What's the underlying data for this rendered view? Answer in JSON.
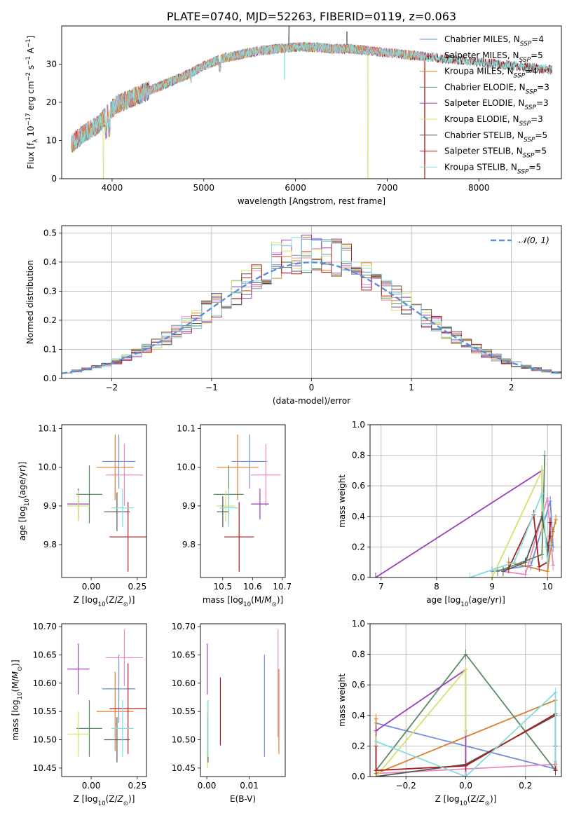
{
  "figure_title": "PLATE=0740, MJD=52263, FIBERID=0119, z=0.063",
  "colors": {
    "Chabrier MILES": "#6f8fdf",
    "Salpeter MILES": "#e98ac0",
    "Kroupa MILES": "#dc7f2c",
    "Chabrier ELODIE": "#5b8a62",
    "Salpeter ELODIE": "#9a3fb8",
    "Kroupa ELODIE": "#d2e36c",
    "Chabrier STELIB": "#555555",
    "Salpeter STELIB": "#ad1e1e",
    "Kroupa STELIB": "#86dcdc",
    "gaussian": "#5b8fd6"
  },
  "chart_data": [
    {
      "id": "spectrum",
      "type": "line",
      "title": "PLATE=0740, MJD=52263, FIBERID=0119, z=0.063",
      "xlabel": "wavelength [Angstrom, rest frame]",
      "ylabel": "Flux [f_λ 10^-17 erg cm^-2 s^-1 A^-1]",
      "xlim": [
        3450,
        8900
      ],
      "ylim": [
        0,
        40
      ],
      "xticks": [
        4000,
        5000,
        6000,
        7000,
        8000
      ],
      "yticks": [
        0,
        10,
        20,
        30
      ],
      "grid": false,
      "legend_position": "top-right",
      "legend": [
        {
          "model": "Chabrier MILES",
          "label": "Chabrier MILES, N",
          "sub": "SSP",
          "suffix": "=4"
        },
        {
          "model": "Salpeter MILES",
          "label": "Salpeter MILES, N",
          "sub": "SSP",
          "suffix": "=5"
        },
        {
          "model": "Kroupa MILES",
          "label": "Kroupa MILES, N",
          "sub": "SSP",
          "suffix": "=4"
        },
        {
          "model": "Chabrier ELODIE",
          "label": "Chabrier ELODIE, N",
          "sub": "SSP",
          "suffix": "=3"
        },
        {
          "model": "Salpeter ELODIE",
          "label": "Salpeter ELODIE, N",
          "sub": "SSP",
          "suffix": "=3"
        },
        {
          "model": "Kroupa ELODIE",
          "label": "Kroupa ELODIE, N",
          "sub": "SSP",
          "suffix": "=3"
        },
        {
          "model": "Chabrier STELIB",
          "label": "Chabrier STELIB, N",
          "sub": "SSP",
          "suffix": "=5"
        },
        {
          "model": "Salpeter STELIB",
          "label": "Salpeter STELIB, N",
          "sub": "SSP",
          "suffix": "=5"
        },
        {
          "model": "Kroupa STELIB",
          "label": "Kroupa STELIB, N",
          "sub": "SSP",
          "suffix": "=5"
        }
      ],
      "continuum": {
        "x": [
          3550,
          3700,
          3850,
          3950,
          4050,
          4200,
          4350,
          4500,
          4650,
          4800,
          5000,
          5200,
          5400,
          5600,
          5800,
          6000,
          6200,
          6400,
          6600,
          6800,
          7000,
          7200,
          7400,
          7600,
          7800,
          8000,
          8200,
          8400,
          8600,
          8800
        ],
        "y": [
          9,
          12,
          14,
          17,
          19.5,
          21,
          22.5,
          24,
          25.5,
          27,
          29.5,
          31.5,
          32.5,
          33.5,
          34,
          34.5,
          34.5,
          34,
          34,
          33.5,
          33,
          32.5,
          32,
          31.5,
          31,
          30.5,
          30,
          29.5,
          29,
          28.5
        ]
      },
      "features": {
        "dips": [
          {
            "model": "Kroupa ELODIE",
            "x": 3905,
            "y": 0
          },
          {
            "model": "Kroupa ELODIE",
            "x": 6790,
            "y": 0
          },
          {
            "model": "Salpeter STELIB",
            "x": 7410,
            "y": 0
          },
          {
            "model": "Kroupa STELIB",
            "x": 5880,
            "y": 26
          }
        ],
        "peaks": [
          {
            "model": "Chabrier STELIB",
            "x": 5930,
            "y": 40
          },
          {
            "model": "Chabrier STELIB",
            "x": 6560,
            "y": 38.5
          }
        ]
      }
    },
    {
      "id": "residuals",
      "type": "histogram",
      "xlabel": "(data-model)/error",
      "ylabel": "Normed distribution",
      "xlim": [
        -2.5,
        2.5
      ],
      "ylim": [
        0,
        0.525
      ],
      "xticks": [
        -2,
        -1,
        0,
        1,
        2
      ],
      "yticks": [
        0.0,
        0.1,
        0.2,
        0.3,
        0.4,
        0.5
      ],
      "grid": true,
      "legend_position": "top-right",
      "legend": [
        {
          "label": "𝒩(0, 1)",
          "style": "dashed"
        }
      ],
      "bin_width": 0.1,
      "reference": "gaussian"
    },
    {
      "id": "age-vs-Z",
      "type": "errorbar",
      "xlabel": "Z [log10(Z/Z☉)]",
      "ylabel": "age  [log10(age/yr)]",
      "xlim": [
        -0.16,
        0.3
      ],
      "ylim": [
        9.715,
        10.11
      ],
      "xticks": [
        0.0,
        0.25
      ],
      "yticks": [
        9.8,
        9.9,
        10.0,
        10.1
      ],
      "grid": false,
      "points": [
        {
          "model": "Chabrier MILES",
          "x": 0.15,
          "y": 10.015,
          "xerr": 0.09,
          "yerr": 0.07
        },
        {
          "model": "Salpeter MILES",
          "x": 0.18,
          "y": 9.98,
          "xerr": 0.1,
          "yerr": 0.08
        },
        {
          "model": "Kroupa MILES",
          "x": 0.13,
          "y": 10.0,
          "xerr": 0.1,
          "yerr": 0.085
        },
        {
          "model": "Chabrier ELODIE",
          "x": -0.01,
          "y": 9.93,
          "xerr": 0.07,
          "yerr": 0.075
        },
        {
          "model": "Salpeter ELODIE",
          "x": -0.07,
          "y": 9.905,
          "xerr": 0.06,
          "yerr": 0.04
        },
        {
          "model": "Kroupa ELODIE",
          "x": -0.07,
          "y": 9.9,
          "xerr": 0.06,
          "yerr": 0.04
        },
        {
          "model": "Chabrier STELIB",
          "x": 0.14,
          "y": 9.885,
          "xerr": 0.07,
          "yerr": 0.05
        },
        {
          "model": "Salpeter STELIB",
          "x": 0.2,
          "y": 9.82,
          "xerr": 0.1,
          "yerr": 0.09
        },
        {
          "model": "Kroupa STELIB",
          "x": 0.17,
          "y": 9.895,
          "xerr": 0.06,
          "yerr": 0.05
        }
      ]
    },
    {
      "id": "age-vs-mass",
      "type": "errorbar",
      "xlabel": "mass [log10(M/M☉)]",
      "ylabel": "",
      "xlim": [
        10.425,
        10.71
      ],
      "ylim": [
        9.715,
        10.11
      ],
      "xticks": [
        10.5,
        10.6,
        10.7
      ],
      "yticks": [
        9.8,
        9.9,
        10.0,
        10.1
      ],
      "grid": false,
      "points": [
        {
          "model": "Chabrier MILES",
          "x": 10.59,
          "y": 10.015,
          "xerr": 0.06,
          "yerr": 0.07
        },
        {
          "model": "Salpeter MILES",
          "x": 10.645,
          "y": 9.98,
          "xerr": 0.05,
          "yerr": 0.08
        },
        {
          "model": "Kroupa MILES",
          "x": 10.55,
          "y": 10.0,
          "xerr": 0.07,
          "yerr": 0.085
        },
        {
          "model": "Chabrier ELODIE",
          "x": 10.52,
          "y": 9.93,
          "xerr": 0.05,
          "yerr": 0.075
        },
        {
          "model": "Salpeter ELODIE",
          "x": 10.625,
          "y": 9.905,
          "xerr": 0.03,
          "yerr": 0.04
        },
        {
          "model": "Kroupa ELODIE",
          "x": 10.51,
          "y": 9.9,
          "xerr": 0.03,
          "yerr": 0.04
        },
        {
          "model": "Chabrier STELIB",
          "x": 10.5,
          "y": 9.885,
          "xerr": 0.02,
          "yerr": 0.04
        },
        {
          "model": "Salpeter STELIB",
          "x": 10.555,
          "y": 9.82,
          "xerr": 0.05,
          "yerr": 0.09
        },
        {
          "model": "Kroupa STELIB",
          "x": 10.52,
          "y": 9.895,
          "xerr": 0.03,
          "yerr": 0.05
        }
      ]
    },
    {
      "id": "weight-vs-age",
      "type": "line",
      "xlabel": "age  [log10(age/yr)]",
      "ylabel": "mass weight",
      "xlim": [
        6.8,
        10.25
      ],
      "ylim": [
        0,
        1.0
      ],
      "xticks": [
        7,
        8,
        9,
        10
      ],
      "yticks": [
        0.0,
        0.2,
        0.4,
        0.6,
        0.8,
        1.0
      ],
      "grid": true,
      "series": [
        {
          "model": "Chabrier MILES",
          "x": [
            9.0,
            9.7,
            10.05,
            10.1
          ],
          "y": [
            0.04,
            0.08,
            0.5,
            0.2
          ]
        },
        {
          "model": "Salpeter MILES",
          "x": [
            9.2,
            9.6,
            10.0,
            10.1
          ],
          "y": [
            0.04,
            0.02,
            0.52,
            0.08
          ]
        },
        {
          "model": "Kroupa MILES",
          "x": [
            9.3,
            10.0,
            10.1,
            10.15
          ],
          "y": [
            0.1,
            0.04,
            0.3,
            0.38
          ]
        },
        {
          "model": "Chabrier ELODIE",
          "x": [
            9.1,
            9.9,
            9.95
          ],
          "y": [
            0.04,
            0.15,
            0.8
          ]
        },
        {
          "model": "Salpeter ELODIE",
          "x": [
            6.9,
            9.9,
            9.9
          ],
          "y": [
            0.0,
            0.7,
            0.3
          ]
        },
        {
          "model": "Kroupa ELODIE",
          "x": [
            9.0,
            9.9,
            9.9
          ],
          "y": [
            0.0,
            0.7,
            0.3
          ]
        },
        {
          "model": "Chabrier STELIB",
          "x": [
            9.2,
            9.6,
            9.9,
            10.0,
            10.05
          ],
          "y": [
            0.04,
            0.1,
            0.4,
            0.2,
            0.27
          ]
        },
        {
          "model": "Salpeter STELIB",
          "x": [
            9.3,
            9.75,
            9.85,
            10.0,
            10.05
          ],
          "y": [
            0.06,
            0.41,
            0.07,
            0.1,
            0.36
          ]
        },
        {
          "model": "Kroupa STELIB",
          "x": [
            8.6,
            9.4,
            9.9,
            10.0,
            10.05
          ],
          "y": [
            0.0,
            0.1,
            0.55,
            0.1,
            0.22
          ]
        }
      ]
    },
    {
      "id": "mass-vs-Z",
      "type": "errorbar",
      "xlabel": "Z [log10(Z/Z☉)]",
      "ylabel": "mass [log10(M/M☉)]",
      "xlim": [
        -0.16,
        0.3
      ],
      "ylim": [
        10.435,
        10.705
      ],
      "xticks": [
        0.0,
        0.25
      ],
      "yticks": [
        10.45,
        10.5,
        10.55,
        10.6,
        10.65,
        10.7
      ],
      "grid": false,
      "points": [
        {
          "model": "Chabrier MILES",
          "x": 0.15,
          "y": 10.59,
          "xerr": 0.09,
          "yerr": 0.06
        },
        {
          "model": "Salpeter MILES",
          "x": 0.18,
          "y": 10.645,
          "xerr": 0.1,
          "yerr": 0.05
        },
        {
          "model": "Kroupa MILES",
          "x": 0.13,
          "y": 10.55,
          "xerr": 0.1,
          "yerr": 0.07
        },
        {
          "model": "Chabrier ELODIE",
          "x": -0.01,
          "y": 10.52,
          "xerr": 0.07,
          "yerr": 0.05
        },
        {
          "model": "Salpeter ELODIE",
          "x": -0.07,
          "y": 10.625,
          "xerr": 0.06,
          "yerr": 0.045
        },
        {
          "model": "Kroupa ELODIE",
          "x": -0.07,
          "y": 10.51,
          "xerr": 0.06,
          "yerr": 0.04
        },
        {
          "model": "Chabrier STELIB",
          "x": 0.14,
          "y": 10.5,
          "xerr": 0.07,
          "yerr": 0.04
        },
        {
          "model": "Salpeter STELIB",
          "x": 0.2,
          "y": 10.555,
          "xerr": 0.1,
          "yerr": 0.08
        },
        {
          "model": "Kroupa STELIB",
          "x": 0.17,
          "y": 10.52,
          "xerr": 0.06,
          "yerr": 0.05
        }
      ]
    },
    {
      "id": "mass-vs-ebv",
      "type": "errorbar",
      "xlabel": "E(B-V)",
      "ylabel": "",
      "xlim": [
        -0.0015,
        0.0185
      ],
      "ylim": [
        10.435,
        10.705
      ],
      "xticks": [
        0.0,
        0.01
      ],
      "yticks": [
        10.45,
        10.5,
        10.55,
        10.6,
        10.65,
        10.7
      ],
      "grid": false,
      "points": [
        {
          "model": "Chabrier MILES",
          "x": 0.0136,
          "y": 10.56,
          "xerr": 0,
          "yerr": 0.09
        },
        {
          "model": "Salpeter MILES",
          "x": 0.0168,
          "y": 10.6,
          "xerr": 0,
          "yerr": 0.095
        },
        {
          "model": "Kroupa MILES",
          "x": 0.017,
          "y": 10.55,
          "xerr": 0,
          "yerr": 0.075
        },
        {
          "model": "Chabrier ELODIE",
          "x": 0.0002,
          "y": 10.51,
          "xerr": 0,
          "yerr": 0.04
        },
        {
          "model": "Salpeter ELODIE",
          "x": 0.0001,
          "y": 10.625,
          "xerr": 0,
          "yerr": 0.045
        },
        {
          "model": "Kroupa ELODIE",
          "x": 0.0002,
          "y": 10.51,
          "xerr": 0,
          "yerr": 0.06
        },
        {
          "model": "Chabrier STELIB",
          "x": 0.0003,
          "y": 10.5,
          "xerr": 0,
          "yerr": 0.04
        },
        {
          "model": "Salpeter STELIB",
          "x": 0.0032,
          "y": 10.55,
          "xerr": 0,
          "yerr": 0.06
        },
        {
          "model": "Kroupa STELIB",
          "x": 0.0003,
          "y": 10.52,
          "xerr": 0,
          "yerr": 0.05
        }
      ]
    },
    {
      "id": "weight-vs-Z",
      "type": "line",
      "xlabel": "Z [log10(Z/Z☉)]",
      "ylabel": "mass weight",
      "xlim": [
        -0.32,
        0.32
      ],
      "ylim": [
        0,
        1.0
      ],
      "xticks": [
        -0.2,
        0.0,
        0.2
      ],
      "yticks": [
        0.0,
        0.2,
        0.4,
        0.6,
        0.8,
        1.0
      ],
      "grid": true,
      "series": [
        {
          "model": "Chabrier MILES",
          "x": [
            -0.3,
            0.3,
            0.3
          ],
          "y": [
            0.35,
            0.05,
            0.5
          ]
        },
        {
          "model": "Salpeter MILES",
          "x": [
            -0.3,
            0.3,
            0.3
          ],
          "y": [
            0.02,
            0.08,
            0.5
          ]
        },
        {
          "model": "Kroupa MILES",
          "x": [
            -0.3,
            -0.3,
            0.3,
            0.3
          ],
          "y": [
            0.38,
            0.02,
            0.5,
            0.04
          ]
        },
        {
          "model": "Chabrier ELODIE",
          "x": [
            -0.3,
            0.0,
            0.3
          ],
          "y": [
            0.04,
            0.8,
            0.04
          ]
        },
        {
          "model": "Salpeter ELODIE",
          "x": [
            -0.3,
            0.0,
            0.0
          ],
          "y": [
            0.3,
            0.7,
            0.0
          ]
        },
        {
          "model": "Kroupa ELODIE",
          "x": [
            -0.3,
            0.0,
            0.0
          ],
          "y": [
            0.0,
            0.7,
            0.3
          ]
        },
        {
          "model": "Chabrier STELIB",
          "x": [
            -0.3,
            0.0,
            0.3,
            0.3
          ],
          "y": [
            0.0,
            0.08,
            0.4,
            0.2
          ]
        },
        {
          "model": "Salpeter STELIB",
          "x": [
            -0.3,
            -0.3,
            0.0,
            0.3,
            0.3
          ],
          "y": [
            0.2,
            0.04,
            0.07,
            0.41,
            0.04
          ]
        },
        {
          "model": "Kroupa STELIB",
          "x": [
            -0.3,
            0.0,
            0.3,
            0.3
          ],
          "y": [
            0.23,
            0.0,
            0.55,
            0.1
          ]
        }
      ]
    }
  ]
}
